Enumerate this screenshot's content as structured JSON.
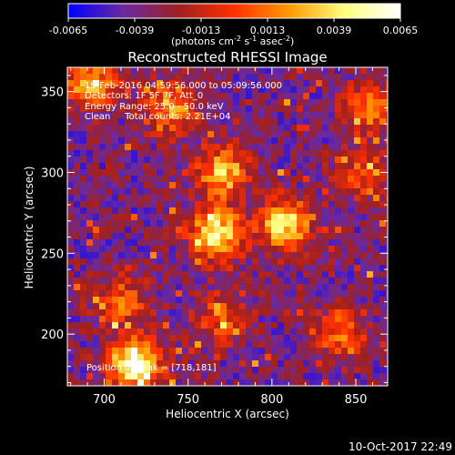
{
  "chart_data": {
    "type": "heatmap",
    "title": "Reconstructed RHESSI Image",
    "xlabel": "Heliocentric X (arcsec)",
    "ylabel": "Heliocentric Y (arcsec)",
    "xlim": [
      678,
      869
    ],
    "ylim": [
      168,
      365
    ],
    "x_ticks": [
      700,
      750,
      800,
      850
    ],
    "y_ticks": [
      200,
      250,
      300,
      350
    ],
    "grid": false,
    "annotations": {
      "time_range": "19-Feb-2016 04:59:56.000 to 05:09:56.000",
      "detectors": "Detectors: 1F 5F 7F, Att_0",
      "energy": "Energy Range: 25.0 - 50.0 keV",
      "method": "Clean     Total counts: 2.21E+04",
      "peak": "Position of Peak = [718,181]"
    },
    "colorbar": {
      "ticks": [
        "-0.0065",
        "-0.0039",
        "-0.0013",
        "0.0013",
        "0.0039",
        "0.0065"
      ],
      "min": -0.0065,
      "max": 0.0065,
      "label_main": "(photons cm",
      "label_exp1": "-2",
      "label_mid": " s",
      "label_exp2": "-1",
      "label_end": " asec",
      "label_exp3": "-2",
      "label_close": ")",
      "colors": [
        "#0000ff",
        "#6a2aa0",
        "#a02020",
        "#ff3000",
        "#ff9a00",
        "#ffff80",
        "#ffffff"
      ]
    },
    "sources": [
      {
        "x": 718,
        "y": 181,
        "level": 1.0
      },
      {
        "x": 767,
        "y": 262,
        "level": 0.85
      },
      {
        "x": 808,
        "y": 268,
        "level": 0.8
      },
      {
        "x": 771,
        "y": 300,
        "level": 0.7
      },
      {
        "x": 740,
        "y": 340,
        "level": 0.6
      },
      {
        "x": 692,
        "y": 355,
        "level": 0.65
      },
      {
        "x": 860,
        "y": 340,
        "level": 0.55
      },
      {
        "x": 855,
        "y": 300,
        "level": 0.45
      },
      {
        "x": 710,
        "y": 220,
        "level": 0.45
      },
      {
        "x": 840,
        "y": 200,
        "level": 0.45
      },
      {
        "x": 770,
        "y": 210,
        "level": 0.4
      }
    ]
  },
  "footer": {
    "date": "10-Oct-2017 22:49"
  }
}
